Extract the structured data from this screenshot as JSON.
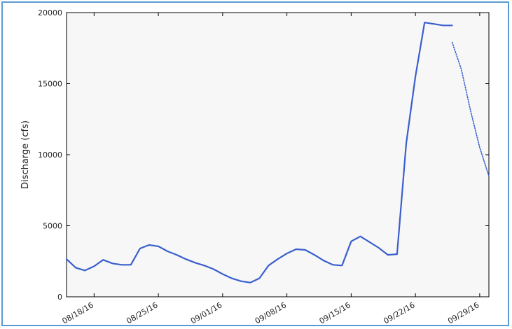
{
  "chart_data": {
    "type": "line",
    "title": "",
    "xlabel": "",
    "ylabel": "Discharge (cfs)",
    "ylim": [
      0,
      20000
    ],
    "xlim": [
      "2016-08-15",
      "2016-09-30"
    ],
    "yticks": [
      0,
      5000,
      10000,
      15000,
      20000
    ],
    "xticks": [
      {
        "date": "2016-08-18",
        "label": "08/18/16"
      },
      {
        "date": "2016-08-25",
        "label": "08/25/16"
      },
      {
        "date": "2016-09-01",
        "label": "09/01/16"
      },
      {
        "date": "2016-09-08",
        "label": "09/08/16"
      },
      {
        "date": "2016-09-15",
        "label": "09/15/16"
      },
      {
        "date": "2016-09-22",
        "label": "09/22/16"
      },
      {
        "date": "2016-09-29",
        "label": "09/29/16"
      }
    ],
    "grid": false,
    "colors": {
      "observed": "#3a5fcd",
      "forecast": "#3a5fcd",
      "plot_bg": "#f7f7f7",
      "frame": "#5b9bd5"
    },
    "series": [
      {
        "style": "solid",
        "x": [
          "2016-08-15",
          "2016-08-16",
          "2016-08-17",
          "2016-08-18",
          "2016-08-19",
          "2016-08-20",
          "2016-08-21",
          "2016-08-22",
          "2016-08-23",
          "2016-08-24",
          "2016-08-25",
          "2016-08-26",
          "2016-08-27",
          "2016-08-28",
          "2016-08-29",
          "2016-08-30",
          "2016-08-31",
          "2016-09-01",
          "2016-09-02",
          "2016-09-03",
          "2016-09-04",
          "2016-09-05",
          "2016-09-06",
          "2016-09-07",
          "2016-09-08",
          "2016-09-09",
          "2016-09-10",
          "2016-09-11",
          "2016-09-12",
          "2016-09-13",
          "2016-09-14",
          "2016-09-15",
          "2016-09-16",
          "2016-09-17",
          "2016-09-18",
          "2016-09-19",
          "2016-09-20",
          "2016-09-21",
          "2016-09-22",
          "2016-09-23",
          "2016-09-24",
          "2016-09-25",
          "2016-09-26"
        ],
        "values": [
          2650,
          2050,
          1850,
          2150,
          2600,
          2350,
          2250,
          2250,
          3400,
          3650,
          3550,
          3200,
          2950,
          2650,
          2400,
          2200,
          1950,
          1600,
          1300,
          1100,
          1000,
          1300,
          2200,
          2650,
          3050,
          3350,
          3300,
          2950,
          2550,
          2250,
          2200,
          3900,
          4250,
          3850,
          3450,
          2950,
          3000,
          10800,
          15500,
          19300,
          19200,
          19100,
          19100
        ]
      },
      {
        "style": "dotted",
        "x": [
          "2016-09-26",
          "2016-09-27",
          "2016-09-28",
          "2016-09-29",
          "2016-09-30"
        ],
        "values": [
          17900,
          16000,
          13100,
          10500,
          8500
        ]
      }
    ]
  }
}
